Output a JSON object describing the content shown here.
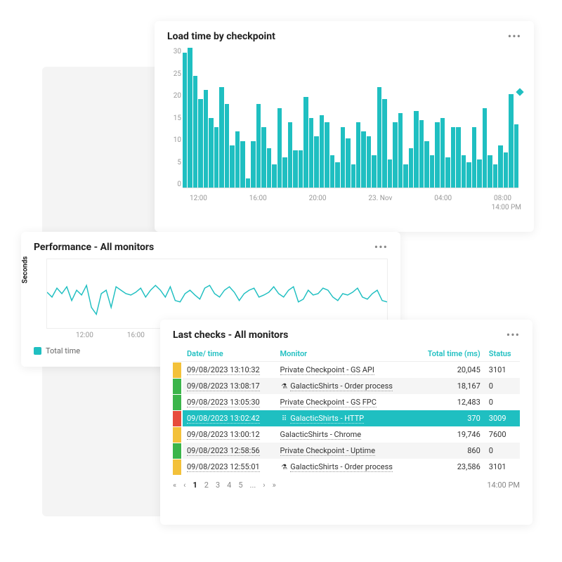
{
  "colors": {
    "teal": "#1fbfc1",
    "green": "#3bb54a",
    "yellow": "#f3c13a",
    "red": "#e74c3c",
    "row_stripe": "#f5f5f5",
    "bg_panel": "#f4f4f4"
  },
  "checkpoint_chart": {
    "title": "Load time by checkpoint",
    "type": "bar",
    "ylim": [
      0,
      30
    ],
    "yticks": [
      30,
      25,
      20,
      15,
      10,
      5,
      0
    ],
    "xticks": [
      "12:00",
      "16:00",
      "20:00",
      "23. Nov",
      "04:00",
      "08:00"
    ],
    "bar_color": "#1fbfc1",
    "values": [
      29,
      30,
      24,
      19,
      21,
      15,
      13,
      21.5,
      18,
      9,
      12,
      10,
      2,
      10,
      18,
      13,
      8.5,
      5,
      17,
      6.5,
      14,
      8,
      8,
      19.5,
      15,
      11,
      15.5,
      14,
      7,
      5.5,
      13,
      10.5,
      5,
      14,
      12,
      11,
      7,
      21.5,
      19,
      6,
      14,
      16,
      5,
      8.5,
      16.5,
      14.5,
      10,
      7,
      14,
      15,
      6.5,
      13,
      13,
      7,
      5.5,
      13,
      6,
      17,
      7,
      5,
      9,
      7.5,
      20,
      13.5
    ],
    "marker_value": 20.5,
    "timestamp": "14:00 PM"
  },
  "perf_chart": {
    "title": "Performance - All monitors",
    "type": "line",
    "ylabel": "Seconds",
    "xticks": [
      "12:00",
      "16:00"
    ],
    "line_color": "#1fbfc1",
    "legend": "Total time",
    "points": [
      52,
      45,
      58,
      50,
      60,
      40,
      55,
      48,
      62,
      30,
      20,
      50,
      55,
      30,
      60,
      55,
      50,
      48,
      52,
      58,
      45,
      55,
      62,
      55,
      45,
      60,
      40,
      38,
      50,
      55,
      48,
      42,
      58,
      62,
      50,
      45,
      55,
      60,
      52,
      40,
      50,
      55,
      58,
      45,
      48,
      52,
      60,
      50,
      45,
      55,
      60,
      38,
      42,
      55,
      48,
      50,
      58,
      55,
      45,
      40,
      50,
      48,
      52,
      58,
      45,
      42,
      50,
      55,
      40,
      38
    ]
  },
  "checks": {
    "title": "Last checks - All monitors",
    "timestamp": "14:00 PM",
    "columns": {
      "dt": "Date/ time",
      "mon": "Monitor",
      "tt": "Total time (ms)",
      "st": "Status"
    },
    "rows": [
      {
        "status_color": "#f3c13a",
        "dt": "09/08/2023 13:10:32",
        "icon": "",
        "mon": "Private Checkpoint - GS API",
        "tt": "20,045",
        "st": "3101",
        "sel": false,
        "stripe": false
      },
      {
        "status_color": "#3bb54a",
        "dt": "09/08/2023 13:08:17",
        "icon": "⚗",
        "mon": "GalacticShirts - Order process",
        "tt": "18,167",
        "st": "0",
        "sel": false,
        "stripe": true
      },
      {
        "status_color": "#3bb54a",
        "dt": "09/08/2023 13:05:30",
        "icon": "",
        "mon": "Private Checkpoint - GS FPC",
        "tt": "12,483",
        "st": "0",
        "sel": false,
        "stripe": false
      },
      {
        "status_color": "#e74c3c",
        "dt": "09/08/2023 13:02:42",
        "icon": "⠿",
        "mon": "GalacticShirts - HTTP",
        "tt": "370",
        "st": "3009",
        "sel": true,
        "stripe": false
      },
      {
        "status_color": "#f3c13a",
        "dt": "09/08/2023 13:00:12",
        "icon": "",
        "mon": "GalacticShirts - Chrome",
        "tt": "19,746",
        "st": "7600",
        "sel": false,
        "stripe": false
      },
      {
        "status_color": "#3bb54a",
        "dt": "09/08/2023 12:58:56",
        "icon": "",
        "mon": "Private Checkpoint - Uptime",
        "tt": "860",
        "st": "0",
        "sel": false,
        "stripe": true
      },
      {
        "status_color": "#f3c13a",
        "dt": "09/08/2023 12:55:01",
        "icon": "⚗",
        "mon": "GalacticShirts - Order process",
        "tt": "23,586",
        "st": "3101",
        "sel": false,
        "stripe": false
      }
    ],
    "pager": {
      "pages": [
        "1",
        "2",
        "3",
        "4",
        "5",
        "...",
        ">"
      ],
      "current": 0
    }
  }
}
